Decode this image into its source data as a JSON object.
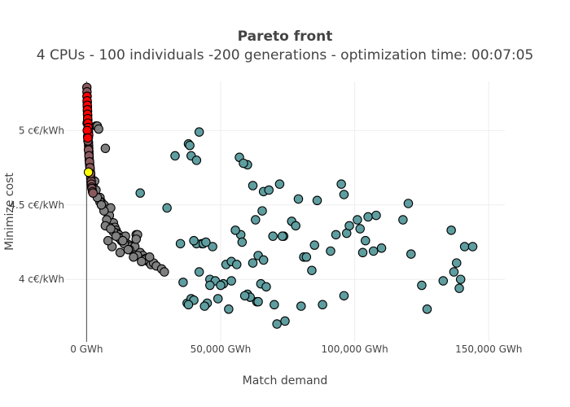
{
  "chart_data": {
    "type": "scatter",
    "title": "Pareto front",
    "subtitle": "4 CPUs - 100 individuals -200 generations - optimization time: 00:07:05",
    "xlabel": "Match demand",
    "ylabel": "Minimize cost",
    "xlim": [
      -8000,
      156000
    ],
    "ylim": [
      3.58,
      5.33
    ],
    "x_ticks": [
      {
        "value": 0,
        "label": "0 GWh"
      },
      {
        "value": 50000,
        "label": "50,000 GWh"
      },
      {
        "value": 100000,
        "label": "100,000 GWh"
      },
      {
        "value": 150000,
        "label": "150,000 GWh"
      }
    ],
    "y_ticks": [
      {
        "value": 4.0,
        "label": "4 c€/kWh"
      },
      {
        "value": 4.5,
        "label": "4.5 c€/kWh"
      },
      {
        "value": 5.0,
        "label": "5 c€/kWh"
      }
    ],
    "grid": true,
    "legend": "none",
    "series": [
      {
        "color": "#5f9ea0",
        "x": [
          42000,
          38000,
          39000,
          41000,
          33000,
          38500,
          57000,
          60000,
          62000,
          58500,
          66000,
          68000,
          72000,
          65500,
          79000,
          86000,
          95000,
          96000,
          105000,
          101000,
          108000,
          120000,
          30000,
          20000,
          63000,
          73500,
          76500,
          78000,
          81000,
          91000,
          97000,
          103000,
          104000,
          107000,
          110000,
          118000,
          136000,
          141000,
          144000,
          121000,
          102000,
          98000,
          93000,
          85000,
          69500,
          73000,
          57500,
          55500,
          58000,
          64000,
          66000,
          62000,
          52000,
          54000,
          47000,
          43000,
          41000,
          35000,
          40000,
          43500,
          44500,
          42000,
          46000,
          48000,
          51000,
          50000,
          46000,
          54000,
          56000,
          60000,
          63500,
          65000,
          67000,
          61000,
          59000,
          64000,
          70000,
          71000,
          74000,
          80000,
          84000,
          88000,
          127000,
          125000,
          133000,
          137000,
          139000,
          138000,
          139500,
          36000,
          37500,
          39000,
          45000,
          49000,
          53000,
          44000,
          40000,
          38000,
          96000,
          82000
        ],
        "y": [
          4.99,
          4.91,
          4.83,
          4.8,
          4.83,
          4.9,
          4.82,
          4.77,
          4.63,
          4.78,
          4.59,
          4.6,
          4.64,
          4.46,
          4.54,
          4.53,
          4.64,
          4.57,
          4.42,
          4.4,
          4.43,
          4.51,
          4.48,
          4.58,
          4.4,
          4.29,
          4.39,
          4.36,
          4.15,
          4.19,
          4.31,
          4.18,
          4.26,
          4.19,
          4.21,
          4.4,
          4.33,
          4.22,
          4.22,
          4.17,
          4.34,
          4.36,
          4.3,
          4.23,
          4.29,
          4.29,
          4.3,
          4.33,
          4.25,
          4.16,
          4.13,
          4.11,
          4.1,
          4.12,
          4.22,
          4.24,
          4.24,
          4.24,
          4.26,
          4.24,
          4.25,
          4.05,
          4.0,
          3.99,
          3.97,
          3.96,
          3.96,
          3.99,
          4.1,
          3.9,
          3.85,
          3.97,
          3.95,
          3.88,
          3.89,
          3.85,
          3.83,
          3.7,
          3.72,
          3.82,
          4.06,
          3.83,
          3.8,
          3.96,
          3.99,
          4.05,
          3.94,
          4.11,
          4.0,
          3.98,
          3.84,
          3.87,
          3.84,
          3.87,
          3.8,
          3.82,
          3.86,
          3.83,
          3.89,
          4.15
        ]
      },
      {
        "color": "#808080",
        "x": [
          3500,
          4000,
          4500,
          3000,
          5000,
          5500,
          6000,
          6500,
          7000,
          7500,
          8000,
          8500,
          9000,
          9500,
          10000,
          10500,
          11000,
          11500,
          12000,
          12500,
          13000,
          14000,
          14500,
          15000,
          16000,
          16500,
          17000,
          18000,
          18500,
          19000,
          20000,
          21000,
          22000,
          23000,
          24000,
          25000,
          26000,
          28000,
          29000,
          5000,
          6500,
          7500,
          8500,
          10000,
          12000,
          14000,
          16000,
          19000,
          21500,
          7000,
          9000,
          11000,
          13500,
          15500,
          17500,
          20500,
          3000,
          4000,
          2500,
          3500,
          5500,
          9500,
          12500,
          18500,
          23500,
          8000
        ],
        "y": [
          5.03,
          5.03,
          5.01,
          4.66,
          4.55,
          4.52,
          4.49,
          4.5,
          4.88,
          4.47,
          4.44,
          4.43,
          4.48,
          4.37,
          4.38,
          4.35,
          4.33,
          4.31,
          4.3,
          4.28,
          4.26,
          4.25,
          4.29,
          4.24,
          4.23,
          4.22,
          4.2,
          4.22,
          4.3,
          4.3,
          4.18,
          4.16,
          4.14,
          4.12,
          4.1,
          4.11,
          4.09,
          4.07,
          4.05,
          4.52,
          4.46,
          4.4,
          4.35,
          4.32,
          4.28,
          4.24,
          4.2,
          4.16,
          4.13,
          4.36,
          4.34,
          4.29,
          4.26,
          4.2,
          4.15,
          4.12,
          4.59,
          4.55,
          4.62,
          4.6,
          4.5,
          4.22,
          4.18,
          4.27,
          4.15,
          4.26
        ]
      },
      {
        "color": "#8b5a5e",
        "x": [
          100,
          150,
          200,
          250,
          300,
          350,
          400,
          450,
          500,
          550,
          600,
          650,
          700,
          750,
          800,
          850,
          900,
          950,
          1000,
          1100,
          1200,
          1300,
          1400,
          1500,
          1600,
          1700,
          1800,
          1900,
          2000,
          2200,
          2400,
          200,
          300,
          400,
          500,
          700,
          900,
          1100,
          1300,
          1500
        ],
        "y": [
          5.29,
          5.26,
          5.23,
          5.19,
          5.16,
          5.13,
          5.1,
          5.07,
          5.04,
          5.01,
          4.98,
          4.95,
          4.92,
          4.9,
          4.88,
          4.86,
          4.84,
          4.82,
          4.8,
          4.78,
          4.76,
          4.74,
          4.72,
          4.7,
          4.68,
          4.66,
          4.64,
          4.62,
          4.61,
          4.59,
          4.58,
          5.05,
          5.0,
          4.96,
          4.93,
          4.87,
          4.83,
          4.79,
          4.75,
          4.71
        ]
      },
      {
        "color": "#ff0000",
        "x": [
          150,
          200,
          250,
          300,
          350,
          400,
          500,
          600,
          700,
          800,
          250,
          450
        ],
        "y": [
          5.23,
          5.2,
          5.17,
          5.14,
          5.11,
          5.08,
          5.05,
          5.02,
          4.99,
          4.97,
          5.0,
          4.95
        ]
      },
      {
        "color": "#ffff00",
        "x": [
          700
        ],
        "y": [
          4.72
        ]
      }
    ]
  }
}
